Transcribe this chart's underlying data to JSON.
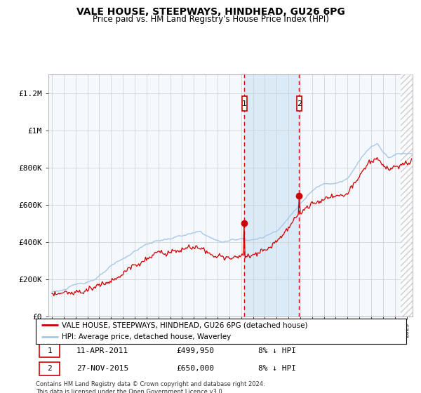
{
  "title": "VALE HOUSE, STEEPWAYS, HINDHEAD, GU26 6PG",
  "subtitle": "Price paid vs. HM Land Registry's House Price Index (HPI)",
  "legend_line1": "VALE HOUSE, STEEPWAYS, HINDHEAD, GU26 6PG (detached house)",
  "legend_line2": "HPI: Average price, detached house, Waverley",
  "sale1_date": "11-APR-2011",
  "sale1_price": 499950,
  "sale1_label": "8% ↓ HPI",
  "sale1_year": 2011.28,
  "sale2_date": "27-NOV-2015",
  "sale2_price": 650000,
  "sale2_label": "8% ↓ HPI",
  "sale2_year": 2015.9,
  "ylim_max": 1300000,
  "xlim_start": 1994.7,
  "xlim_end": 2025.5,
  "footer": "Contains HM Land Registry data © Crown copyright and database right 2024.\nThis data is licensed under the Open Government Licence v3.0.",
  "hpi_color": "#a8c8e8",
  "price_color": "#cc0000",
  "shade_color": "#dbeaf7",
  "hatch_color": "#dddddd",
  "grid_color": "#cccccc",
  "bg_color": "#f0f4f8"
}
